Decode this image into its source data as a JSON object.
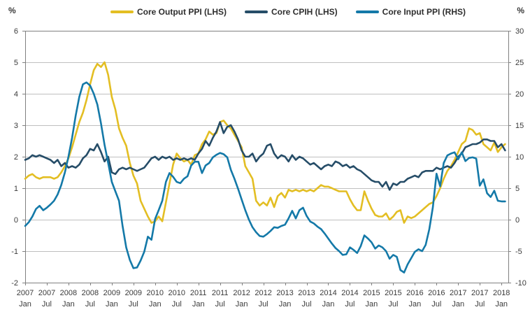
{
  "chart_data": {
    "type": "line",
    "title": "",
    "left_axis": {
      "unit": "%",
      "min": -2,
      "max": 6,
      "ticks": [
        6,
        5,
        4,
        3,
        2,
        1,
        0,
        -1,
        -2
      ]
    },
    "right_axis": {
      "unit": "%",
      "min": -10,
      "max": 30,
      "ticks": [
        30,
        25,
        20,
        15,
        10,
        5,
        0,
        -5,
        -10
      ]
    },
    "grid": true,
    "legend_position": "top",
    "x_start": "2007 Jan",
    "x_end": "2018 Feb",
    "x_frequency": "monthly",
    "x_tick_labels": [
      {
        "year": "2007",
        "month": "Jan"
      },
      {
        "year": "2007",
        "month": "Jul"
      },
      {
        "year": "2008",
        "month": "Jan"
      },
      {
        "year": "2008",
        "month": "Jul"
      },
      {
        "year": "2009",
        "month": "Jan"
      },
      {
        "year": "2009",
        "month": "Jul"
      },
      {
        "year": "2010",
        "month": "Jan"
      },
      {
        "year": "2010",
        "month": "Jul"
      },
      {
        "year": "2011",
        "month": "Jan"
      },
      {
        "year": "2011",
        "month": "Jul"
      },
      {
        "year": "2012",
        "month": "Jan"
      },
      {
        "year": "2012",
        "month": "Jul"
      },
      {
        "year": "2013",
        "month": "Jan"
      },
      {
        "year": "2013",
        "month": "Jul"
      },
      {
        "year": "2014",
        "month": "Jan"
      },
      {
        "year": "2014",
        "month": "Jul"
      },
      {
        "year": "2015",
        "month": "Jan"
      },
      {
        "year": "2015",
        "month": "Jul"
      },
      {
        "year": "2016",
        "month": "Jan"
      },
      {
        "year": "2016",
        "month": "Jul"
      },
      {
        "year": "2017",
        "month": "Jan"
      },
      {
        "year": "2017",
        "month": "Jul"
      },
      {
        "year": "2018",
        "month": "Jan"
      }
    ],
    "series": [
      {
        "name": "Core Output PPI (LHS)",
        "axis": "left",
        "color": "#E3BE23",
        "values": [
          1.3,
          1.4,
          1.45,
          1.35,
          1.3,
          1.35,
          1.35,
          1.35,
          1.3,
          1.35,
          1.5,
          1.7,
          1.95,
          2.3,
          2.7,
          3.1,
          3.4,
          3.8,
          4.3,
          4.75,
          4.95,
          4.85,
          5.0,
          4.6,
          3.9,
          3.5,
          2.9,
          2.6,
          2.35,
          1.8,
          1.4,
          1.15,
          0.6,
          0.35,
          0.1,
          -0.1,
          -0.05,
          0.1,
          -0.05,
          0.55,
          1.15,
          1.75,
          2.1,
          1.95,
          1.85,
          1.9,
          1.75,
          2.05,
          2.1,
          2.4,
          2.55,
          2.8,
          2.7,
          2.75,
          3.1,
          3.15,
          3.0,
          2.9,
          2.7,
          2.5,
          2.3,
          1.7,
          1.5,
          1.3,
          0.6,
          0.45,
          0.55,
          0.45,
          0.7,
          0.4,
          0.75,
          0.85,
          0.7,
          0.95,
          0.9,
          0.95,
          0.9,
          0.95,
          0.9,
          0.95,
          0.9,
          1.0,
          1.1,
          1.05,
          1.05,
          1.0,
          0.95,
          0.9,
          0.9,
          0.9,
          0.65,
          0.45,
          0.3,
          0.3,
          0.9,
          0.6,
          0.35,
          0.15,
          0.1,
          0.1,
          0.2,
          0.0,
          0.1,
          0.25,
          0.3,
          -0.1,
          0.1,
          0.05,
          0.1,
          0.2,
          0.3,
          0.4,
          0.5,
          0.55,
          0.75,
          1.0,
          1.3,
          1.55,
          1.7,
          1.9,
          2.15,
          2.4,
          2.5,
          2.9,
          2.85,
          2.7,
          2.75,
          2.4,
          2.3,
          2.2,
          2.45,
          2.15,
          2.3,
          2.4
        ]
      },
      {
        "name": "Core CPIH (LHS)",
        "axis": "left",
        "color": "#264D68",
        "values": [
          1.9,
          1.95,
          2.05,
          2.0,
          2.05,
          2.0,
          1.95,
          1.9,
          1.8,
          1.9,
          1.7,
          1.8,
          1.65,
          1.7,
          1.65,
          1.75,
          1.95,
          2.05,
          2.25,
          2.2,
          2.4,
          2.15,
          1.85,
          2.0,
          1.5,
          1.45,
          1.6,
          1.65,
          1.6,
          1.65,
          1.6,
          1.55,
          1.6,
          1.65,
          1.8,
          1.95,
          2.0,
          1.9,
          2.0,
          1.95,
          2.0,
          1.9,
          1.95,
          1.9,
          1.95,
          1.9,
          1.95,
          1.9,
          2.1,
          2.25,
          2.5,
          2.35,
          2.6,
          2.8,
          3.1,
          2.75,
          2.95,
          3.0,
          2.8,
          2.55,
          2.2,
          2.0,
          2.0,
          2.1,
          1.85,
          2.0,
          2.1,
          2.35,
          2.4,
          2.1,
          1.95,
          2.05,
          2.0,
          1.85,
          2.05,
          1.9,
          2.0,
          1.95,
          1.85,
          1.75,
          1.8,
          1.7,
          1.6,
          1.7,
          1.75,
          1.7,
          1.85,
          1.8,
          1.7,
          1.75,
          1.65,
          1.7,
          1.6,
          1.55,
          1.45,
          1.35,
          1.25,
          1.2,
          1.2,
          1.05,
          1.2,
          0.95,
          1.15,
          1.1,
          1.2,
          1.2,
          1.3,
          1.35,
          1.4,
          1.35,
          1.5,
          1.55,
          1.55,
          1.55,
          1.65,
          1.6,
          1.65,
          1.7,
          1.65,
          1.8,
          2.0,
          2.1,
          2.3,
          2.35,
          2.4,
          2.4,
          2.45,
          2.55,
          2.55,
          2.5,
          2.5,
          2.3,
          2.4,
          2.2
        ]
      },
      {
        "name": "Core Input PPI (RHS)",
        "axis": "right",
        "color": "#1479A8",
        "values": [
          -1.0,
          -0.4,
          0.5,
          1.7,
          2.2,
          1.5,
          1.9,
          2.4,
          3.0,
          4.0,
          5.5,
          7.5,
          10.0,
          13.0,
          16.5,
          19.5,
          21.5,
          21.8,
          21.3,
          20.0,
          18.3,
          15.3,
          11.9,
          9.0,
          6.0,
          4.5,
          3.0,
          -1.0,
          -4.4,
          -6.4,
          -7.7,
          -7.6,
          -6.5,
          -5.1,
          -2.7,
          -3.2,
          0.1,
          1.5,
          3.0,
          6.0,
          7.4,
          6.8,
          6.0,
          5.8,
          6.5,
          6.9,
          8.6,
          9.2,
          9.2,
          7.4,
          8.6,
          9.0,
          9.9,
          10.3,
          10.6,
          10.4,
          9.9,
          7.9,
          6.5,
          4.9,
          3.2,
          1.5,
          0.0,
          -1.2,
          -2.0,
          -2.6,
          -2.7,
          -2.3,
          -1.8,
          -1.2,
          -1.3,
          -1.0,
          -0.8,
          0.2,
          1.4,
          0.2,
          1.5,
          1.9,
          0.6,
          -0.3,
          -0.6,
          -1.1,
          -1.5,
          -2.2,
          -3.0,
          -3.8,
          -4.5,
          -5.0,
          -5.6,
          -5.5,
          -4.4,
          -4.8,
          -5.3,
          -4.2,
          -2.5,
          -3.0,
          -3.6,
          -4.6,
          -4.1,
          -4.4,
          -5.0,
          -6.2,
          -5.6,
          -5.9,
          -8.0,
          -8.4,
          -7.1,
          -6.1,
          -5.1,
          -4.7,
          -5.0,
          -4.0,
          -1.5,
          2.0,
          7.3,
          5.3,
          9.0,
          10.2,
          10.5,
          10.7,
          9.6,
          10.7,
          9.3,
          9.8,
          9.9,
          9.7,
          5.4,
          6.4,
          4.2,
          3.6,
          4.6,
          3.0,
          2.9,
          2.9
        ]
      }
    ]
  },
  "colors": {
    "gridline": "#BFBFBF",
    "axis_border": "#808080",
    "tick_text": "#3A3A3A"
  }
}
